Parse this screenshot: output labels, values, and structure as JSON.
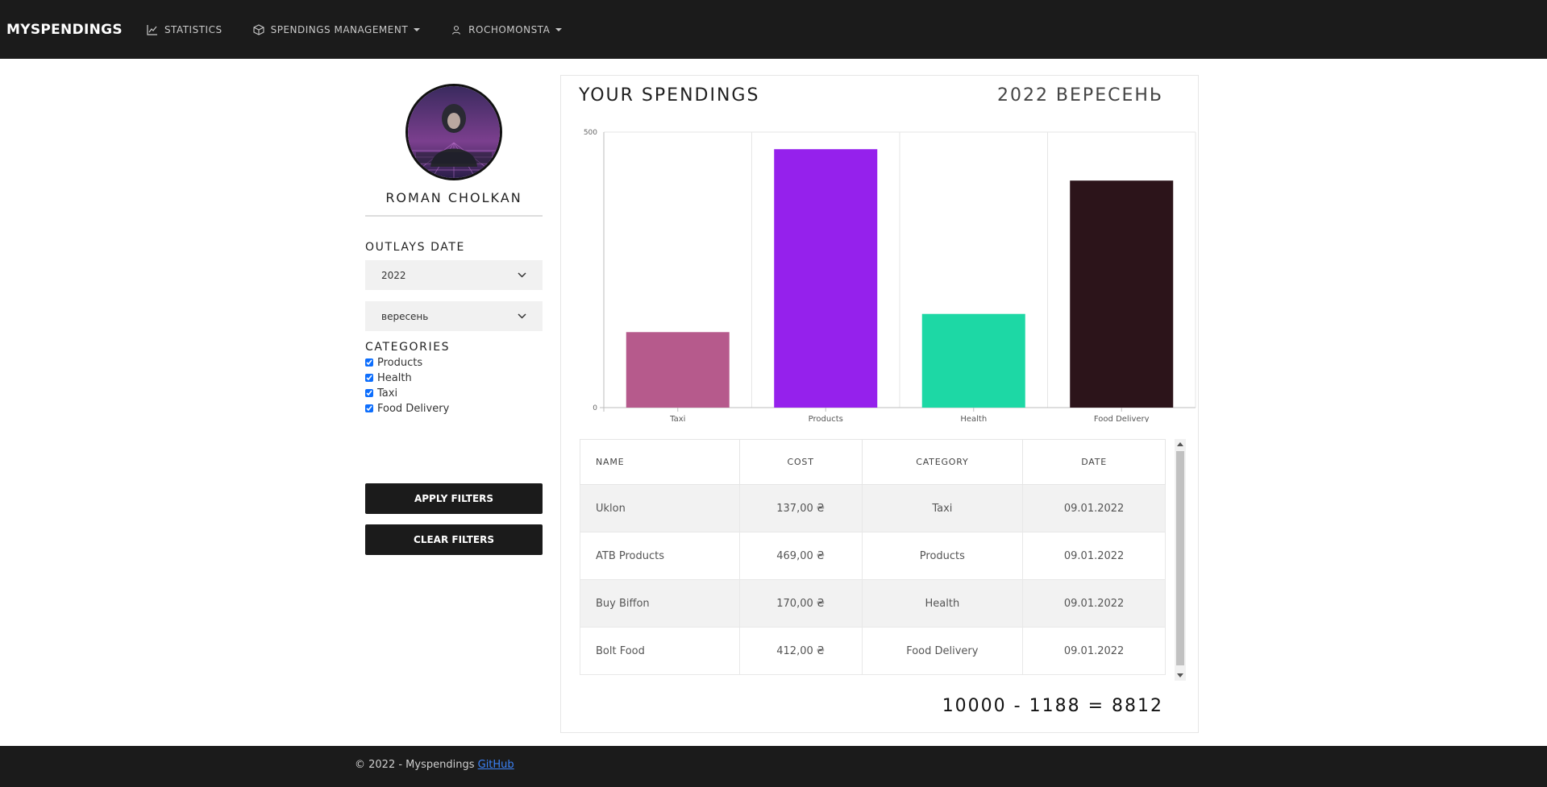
{
  "navbar": {
    "brand": "MYSPENDINGS",
    "items": [
      {
        "label": "STATISTICS",
        "icon": "chart-line-icon"
      },
      {
        "label": "SPENDINGS MANAGEMENT",
        "icon": "box-icon"
      },
      {
        "label": "ROCHOMONSTA",
        "icon": "user-icon"
      }
    ]
  },
  "sidebar": {
    "user_name": "ROMAN CHOLKAN",
    "outlays_title": "OUTLAYS DATE",
    "year_value": "2022",
    "month_value": "вересень",
    "categories_title": "CATEGORIES",
    "categories": [
      {
        "label": "Products",
        "checked": true
      },
      {
        "label": "Health",
        "checked": true
      },
      {
        "label": "Taxi",
        "checked": true
      },
      {
        "label": "Food Delivery",
        "checked": true
      }
    ],
    "apply_label": "APPLY FILTERS",
    "clear_label": "CLEAR FILTERS"
  },
  "main": {
    "title": "YOUR SPENDINGS",
    "period": "2022 ВЕРЕСЕНЬ",
    "balance": "10000 - 1188 = 8812"
  },
  "chart_data": {
    "type": "bar",
    "categories": [
      "Taxi",
      "Products",
      "Health",
      "Food Delivery"
    ],
    "values": [
      137,
      469,
      170,
      412
    ],
    "colors": [
      "#b65a8c",
      "#9521ec",
      "#1dd8a5",
      "#2c141a"
    ],
    "ylim": [
      0,
      500
    ],
    "yticks": [
      "0",
      "500"
    ],
    "grid": true
  },
  "table": {
    "headers": [
      "NAME",
      "COST",
      "CATEGORY",
      "DATE"
    ],
    "rows": [
      [
        "Uklon",
        "137,00 ₴",
        "Taxi",
        "09.01.2022"
      ],
      [
        "ATB Products",
        "469,00 ₴",
        "Products",
        "09.01.2022"
      ],
      [
        "Buy Biffon",
        "170,00 ₴",
        "Health",
        "09.01.2022"
      ],
      [
        "Bolt Food",
        "412,00 ₴",
        "Food Delivery",
        "09.01.2022"
      ]
    ]
  },
  "footer": {
    "text": "© 2022 - Myspendings",
    "link_label": "GitHub"
  }
}
